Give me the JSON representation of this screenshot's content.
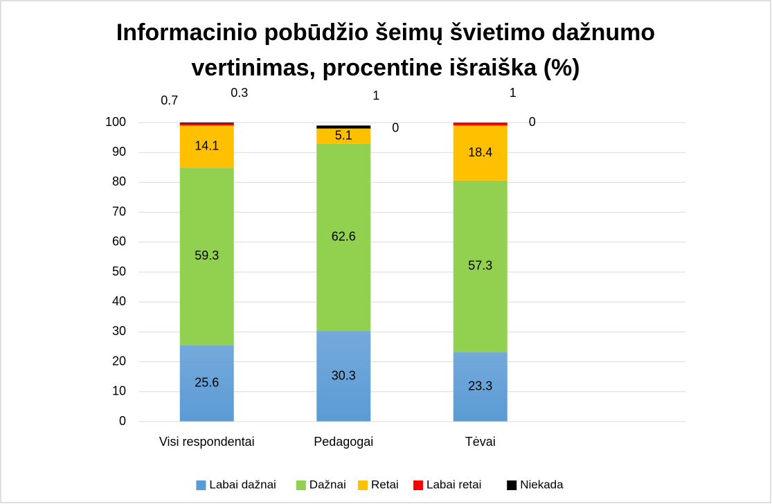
{
  "chart_data": {
    "type": "stacked_bar",
    "title": "Informacinio pobūdžio šeimų švietimo dažnumo vertinimas, procentine išraiška (%)",
    "categories": [
      "Visi respondentai",
      "Pedagogai",
      "Tėvai",
      null
    ],
    "series": [
      {
        "name": "Labai dažnai",
        "color": "#5b9bd5",
        "values": [
          25.6,
          30.3,
          23.3,
          null
        ]
      },
      {
        "name": "Dažnai",
        "color": "#92d050",
        "values": [
          59.3,
          62.6,
          57.3,
          null
        ]
      },
      {
        "name": "Retai",
        "color": "#ffc000",
        "values": [
          14.1,
          5.1,
          18.4,
          null
        ]
      },
      {
        "name": "Labai retai",
        "color": "#ff0000",
        "values": [
          0.7,
          0,
          1,
          null
        ]
      },
      {
        "name": "Niekada",
        "color": "#000000",
        "values": [
          0.3,
          1,
          0,
          null
        ]
      }
    ],
    "ylim": [
      0,
      100
    ],
    "yticks": [
      0,
      10,
      20,
      30,
      40,
      50,
      60,
      70,
      80,
      90,
      100
    ],
    "grid": true,
    "legend": "bottom"
  }
}
